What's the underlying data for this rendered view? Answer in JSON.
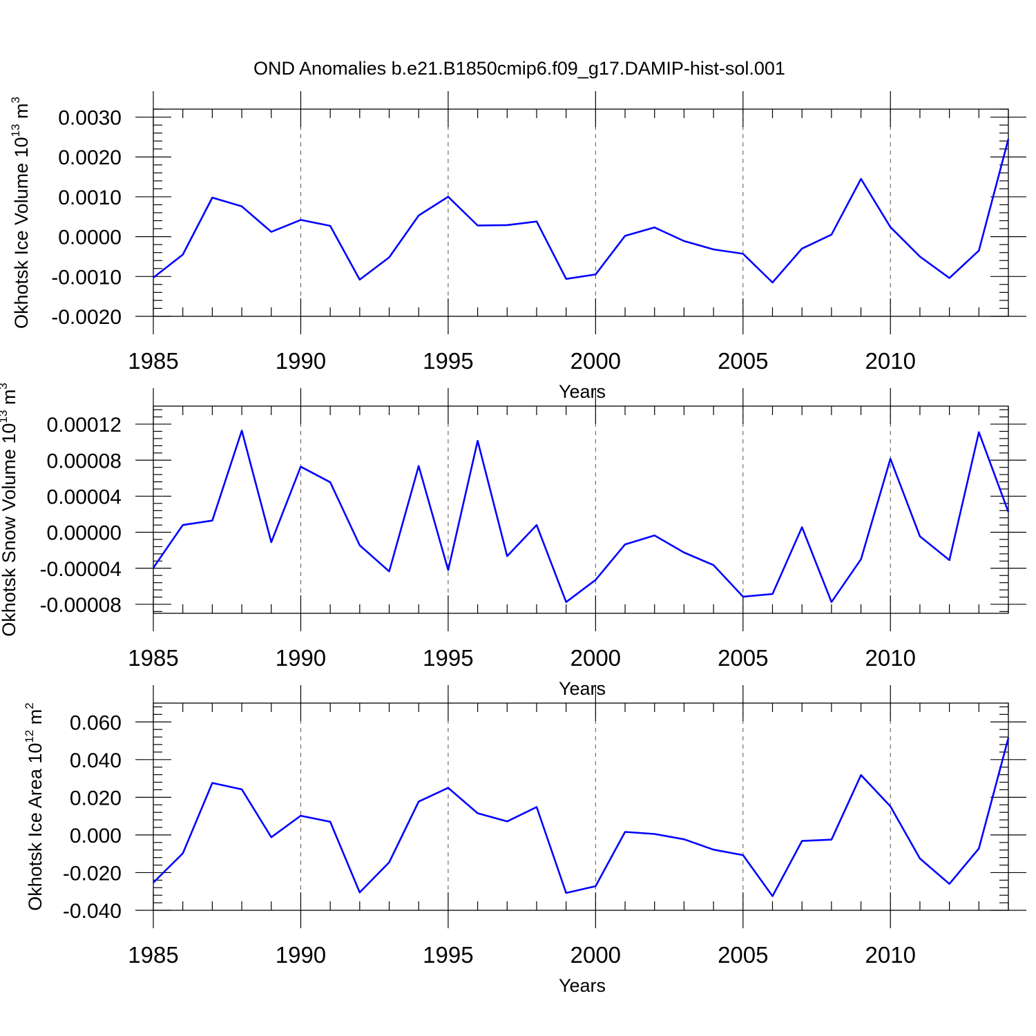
{
  "title": "OND Anomalies b.e21.B1850cmip6.f09_g17.DAMIP-hist-sol.001",
  "chart_data": [
    {
      "type": "line",
      "xlabel": "Years",
      "ylabel": "Okhotsk Ice Volume 10",
      "ylabel_exp": "13",
      "ylabel_unit": " m",
      "ylabel_unit_exp": "3",
      "xlim": [
        1985,
        2014
      ],
      "ylim": [
        -0.002,
        0.0032
      ],
      "xticks": [
        "1985",
        "1990",
        "1995",
        "2000",
        "2005",
        "2010"
      ],
      "yticks": [
        "0.0030",
        "0.0020",
        "0.0010",
        "0.0000",
        "-0.0010",
        "-0.0020"
      ],
      "ytick_values": [
        0.003,
        0.002,
        0.001,
        0.0,
        -0.001,
        -0.002
      ],
      "x": [
        1985,
        1986,
        1987,
        1988,
        1989,
        1990,
        1991,
        1992,
        1993,
        1994,
        1995,
        1996,
        1997,
        1998,
        1999,
        2000,
        2001,
        2002,
        2003,
        2004,
        2005,
        2006,
        2007,
        2008,
        2009,
        2010,
        2011,
        2012,
        2013,
        2014
      ],
      "series": [
        {
          "values": [
            -0.00103,
            -0.00045,
            0.00098,
            0.00076,
            0.00012,
            0.00042,
            0.00027,
            -0.00108,
            -0.00052,
            0.00053,
            0.001,
            0.00028,
            0.00029,
            0.00038,
            -0.00106,
            -0.00095,
            2e-05,
            0.00023,
            -0.00011,
            -0.00032,
            -0.00043,
            -0.00115,
            -0.0003,
            5e-05,
            0.00145,
            0.00024,
            -0.0005,
            -0.00104,
            -0.00035,
            0.00245
          ],
          "color": "#0000ff"
        }
      ],
      "grid": "vertical dashed at major x ticks"
    },
    {
      "type": "line",
      "xlabel": "Years",
      "ylabel": "Okhotsk Snow Volume 10",
      "ylabel_exp": "13",
      "ylabel_unit": " m",
      "ylabel_unit_exp": "3",
      "xlim": [
        1985,
        2014
      ],
      "ylim": [
        -9e-05,
        0.00014
      ],
      "xticks": [
        "1985",
        "1990",
        "1995",
        "2000",
        "2005",
        "2010"
      ],
      "yticks": [
        "0.00012",
        "0.00008",
        "0.00004",
        "0.00000",
        "-0.00004",
        "-0.00008"
      ],
      "ytick_values": [
        0.00012,
        8e-05,
        4e-05,
        0.0,
        -4e-05,
        -8e-05
      ],
      "x": [
        1985,
        1986,
        1987,
        1988,
        1989,
        1990,
        1991,
        1992,
        1993,
        1994,
        1995,
        1996,
        1997,
        1998,
        1999,
        2000,
        2001,
        2002,
        2003,
        2004,
        2005,
        2006,
        2007,
        2008,
        2009,
        2010,
        2011,
        2012,
        2013,
        2014
      ],
      "series": [
        {
          "values": [
            -3.95e-05,
            8e-06,
            1.3e-05,
            0.0001128,
            -1.1e-05,
            7.28e-05,
            5.55e-05,
            -1.45e-05,
            -4.35e-05,
            7.35e-05,
            -4.2e-05,
            0.0001015,
            -2.65e-05,
            8e-06,
            -7.75e-05,
            -5.3e-05,
            -1.35e-05,
            -3.5e-06,
            -2.25e-05,
            -3.65e-05,
            -7.15e-05,
            -6.85e-05,
            5.5e-06,
            -7.75e-05,
            -3e-05,
            8.15e-05,
            -4.5e-06,
            -3.1e-05,
            0.000111,
            2.25e-05
          ],
          "color": "#0000ff"
        }
      ],
      "grid": "vertical dashed at major x ticks"
    },
    {
      "type": "line",
      "xlabel": "Years",
      "ylabel": "Okhotsk Ice Area 10",
      "ylabel_exp": "12",
      "ylabel_unit": " m",
      "ylabel_unit_exp": "2",
      "xlim": [
        1985,
        2014
      ],
      "ylim": [
        -0.04,
        0.07
      ],
      "xticks": [
        "1985",
        "1990",
        "1995",
        "2000",
        "2005",
        "2010"
      ],
      "yticks": [
        "0.060",
        "0.040",
        "0.020",
        "0.000",
        "-0.020",
        "-0.040"
      ],
      "ytick_values": [
        0.06,
        0.04,
        0.02,
        0.0,
        -0.02,
        -0.04
      ],
      "x": [
        1985,
        1986,
        1987,
        1988,
        1989,
        1990,
        1991,
        1992,
        1993,
        1994,
        1995,
        1996,
        1997,
        1998,
        1999,
        2000,
        2001,
        2002,
        2003,
        2004,
        2005,
        2006,
        2007,
        2008,
        2009,
        2010,
        2011,
        2012,
        2013,
        2014
      ],
      "series": [
        {
          "values": [
            -0.0253,
            -0.0098,
            0.0276,
            0.0242,
            -0.0012,
            0.0102,
            0.007,
            -0.0305,
            -0.0145,
            0.0177,
            0.025,
            0.0115,
            0.0072,
            0.0148,
            -0.0308,
            -0.0272,
            0.0016,
            0.0005,
            -0.0023,
            -0.0078,
            -0.0107,
            -0.0325,
            -0.0032,
            -0.0025,
            0.0318,
            0.0152,
            -0.0125,
            -0.026,
            -0.0072,
            0.0515
          ],
          "color": "#0000ff"
        }
      ],
      "grid": "vertical dashed at major x ticks"
    }
  ]
}
